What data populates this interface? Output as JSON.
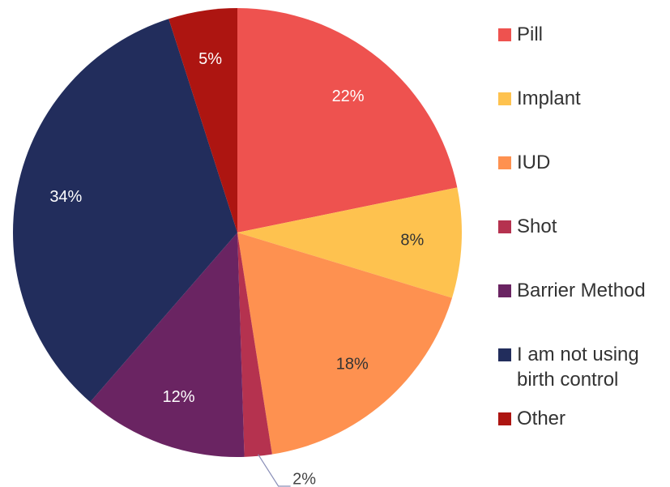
{
  "chart_data": {
    "type": "pie",
    "categories": [
      "Pill",
      "Implant",
      "IUD",
      "Shot",
      "Barrier Method",
      "I am not using birth control",
      "Other"
    ],
    "values": [
      22,
      8,
      18,
      2,
      12,
      34,
      5
    ],
    "value_labels": [
      "22%",
      "8%",
      "18%",
      "2%",
      "12%",
      "34%",
      "5%"
    ],
    "colors": [
      "#ee524f",
      "#fec24f",
      "#fe9150",
      "#b5324f",
      "#6a2462",
      "#222d5c",
      "#ad1511"
    ],
    "legend": "right"
  }
}
